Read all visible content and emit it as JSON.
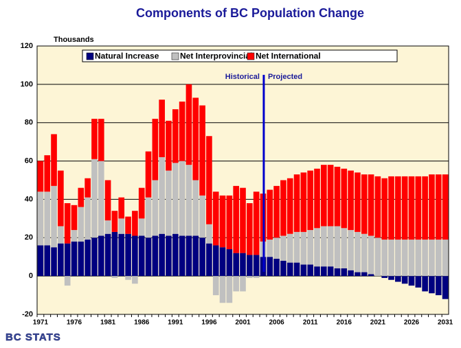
{
  "chart_data": {
    "type": "stacked_bar",
    "title": "Components of BC Population Change",
    "y_label": "Thousands",
    "annotations": [
      "Historical",
      "Projected"
    ],
    "logo": "BC STATS",
    "categories": [
      "1971",
      null,
      null,
      null,
      null,
      "1976",
      null,
      null,
      null,
      null,
      "1981",
      null,
      null,
      null,
      null,
      "1986",
      null,
      null,
      null,
      null,
      "1991",
      null,
      null,
      null,
      null,
      "1996",
      null,
      null,
      null,
      null,
      "2001",
      null,
      null,
      null,
      null,
      "2006",
      null,
      null,
      null,
      null,
      "2011",
      null,
      null,
      null,
      null,
      "2016",
      null,
      null,
      null,
      null,
      "2021",
      null,
      null,
      null,
      null,
      "2026",
      null,
      null,
      null,
      null,
      "2031"
    ],
    "series": [
      {
        "name": "Natural Increase",
        "color": "#000080",
        "values": [
          16,
          16,
          15,
          17,
          17,
          18,
          18,
          19,
          20,
          21,
          22,
          23,
          22,
          22,
          21,
          21,
          20,
          21,
          22,
          21,
          22,
          21,
          21,
          21,
          20,
          17,
          16,
          15,
          14,
          12,
          12,
          11,
          11,
          10,
          10,
          9,
          8,
          7,
          7,
          6,
          6,
          5,
          5,
          5,
          4,
          4,
          3,
          2,
          2,
          1,
          0,
          -1,
          -2,
          -3,
          -4,
          -5,
          -6,
          -8,
          -9,
          -10,
          -12
        ]
      },
      {
        "name": "Net Interprovincial",
        "color": "#c0c0c0",
        "values": [
          28,
          28,
          32,
          9,
          -5,
          6,
          18,
          22,
          41,
          39,
          7,
          -1,
          8,
          -2,
          -4,
          9,
          21,
          29,
          40,
          34,
          37,
          39,
          37,
          29,
          22,
          10,
          -10,
          -14,
          -14,
          -8,
          -8,
          -1,
          -1,
          8,
          9,
          11,
          13,
          15,
          16,
          17,
          18,
          20,
          21,
          21,
          22,
          21,
          21,
          21,
          20,
          20,
          20,
          19,
          19,
          19,
          19,
          19,
          19,
          19,
          19,
          19,
          19
        ]
      },
      {
        "name": "Net International",
        "color": "#ff0000",
        "values": [
          16,
          19,
          27,
          29,
          21,
          13,
          10,
          10,
          21,
          22,
          21,
          11,
          11,
          9,
          13,
          16,
          24,
          32,
          30,
          26,
          28,
          31,
          42,
          43,
          47,
          46,
          28,
          27,
          28,
          35,
          34,
          27,
          33,
          25,
          26,
          27,
          29,
          29,
          30,
          31,
          31,
          31,
          32,
          32,
          31,
          31,
          31,
          31,
          31,
          32,
          32,
          32,
          33,
          33,
          33,
          33,
          33,
          33,
          34,
          34,
          34
        ]
      }
    ],
    "ylim": [
      -20,
      120
    ],
    "yticks": [
      -20,
      0,
      20,
      40,
      60,
      80,
      100,
      120
    ],
    "grid": true,
    "legend": "top"
  }
}
